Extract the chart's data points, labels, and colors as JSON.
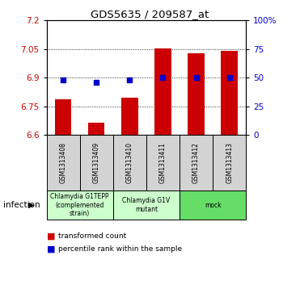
{
  "title": "GDS5635 / 209587_at",
  "samples": [
    "GSM1313408",
    "GSM1313409",
    "GSM1313410",
    "GSM1313411",
    "GSM1313412",
    "GSM1313413"
  ],
  "bar_values": [
    6.785,
    6.662,
    6.793,
    7.055,
    7.03,
    7.04
  ],
  "percentile_values": [
    48,
    46,
    48,
    50,
    50,
    50
  ],
  "bar_color": "#cc0000",
  "dot_color": "#0000cc",
  "y_min": 6.6,
  "y_max": 7.2,
  "y_ticks": [
    6.6,
    6.75,
    6.9,
    7.05,
    7.2
  ],
  "y_tick_labels": [
    "6.6",
    "6.75",
    "6.9",
    "7.05",
    "7.2"
  ],
  "right_y_ticks": [
    0,
    25,
    50,
    75,
    100
  ],
  "right_y_tick_labels": [
    "0",
    "25",
    "50",
    "75",
    "100%"
  ],
  "grid_values": [
    6.75,
    6.9,
    7.05
  ],
  "groups": [
    {
      "label": "Chlamydia G1TEPP\n(complemented\nstrain)",
      "start": 0,
      "end": 2,
      "color": "#ccffcc"
    },
    {
      "label": "Chlamydia G1V\nmutant",
      "start": 2,
      "end": 4,
      "color": "#ccffcc"
    },
    {
      "label": "mock",
      "start": 4,
      "end": 6,
      "color": "#66dd66"
    }
  ],
  "infection_label": "infection",
  "legend_items": [
    {
      "color": "#cc0000",
      "label": "transformed count"
    },
    {
      "color": "#0000cc",
      "label": "percentile rank within the sample"
    }
  ],
  "background_color": "#ffffff",
  "plot_bg_color": "#ffffff",
  "tick_label_color_left": "#cc0000",
  "tick_label_color_right": "#0000cc",
  "sample_box_color": "#d3d3d3",
  "bar_width": 0.5
}
